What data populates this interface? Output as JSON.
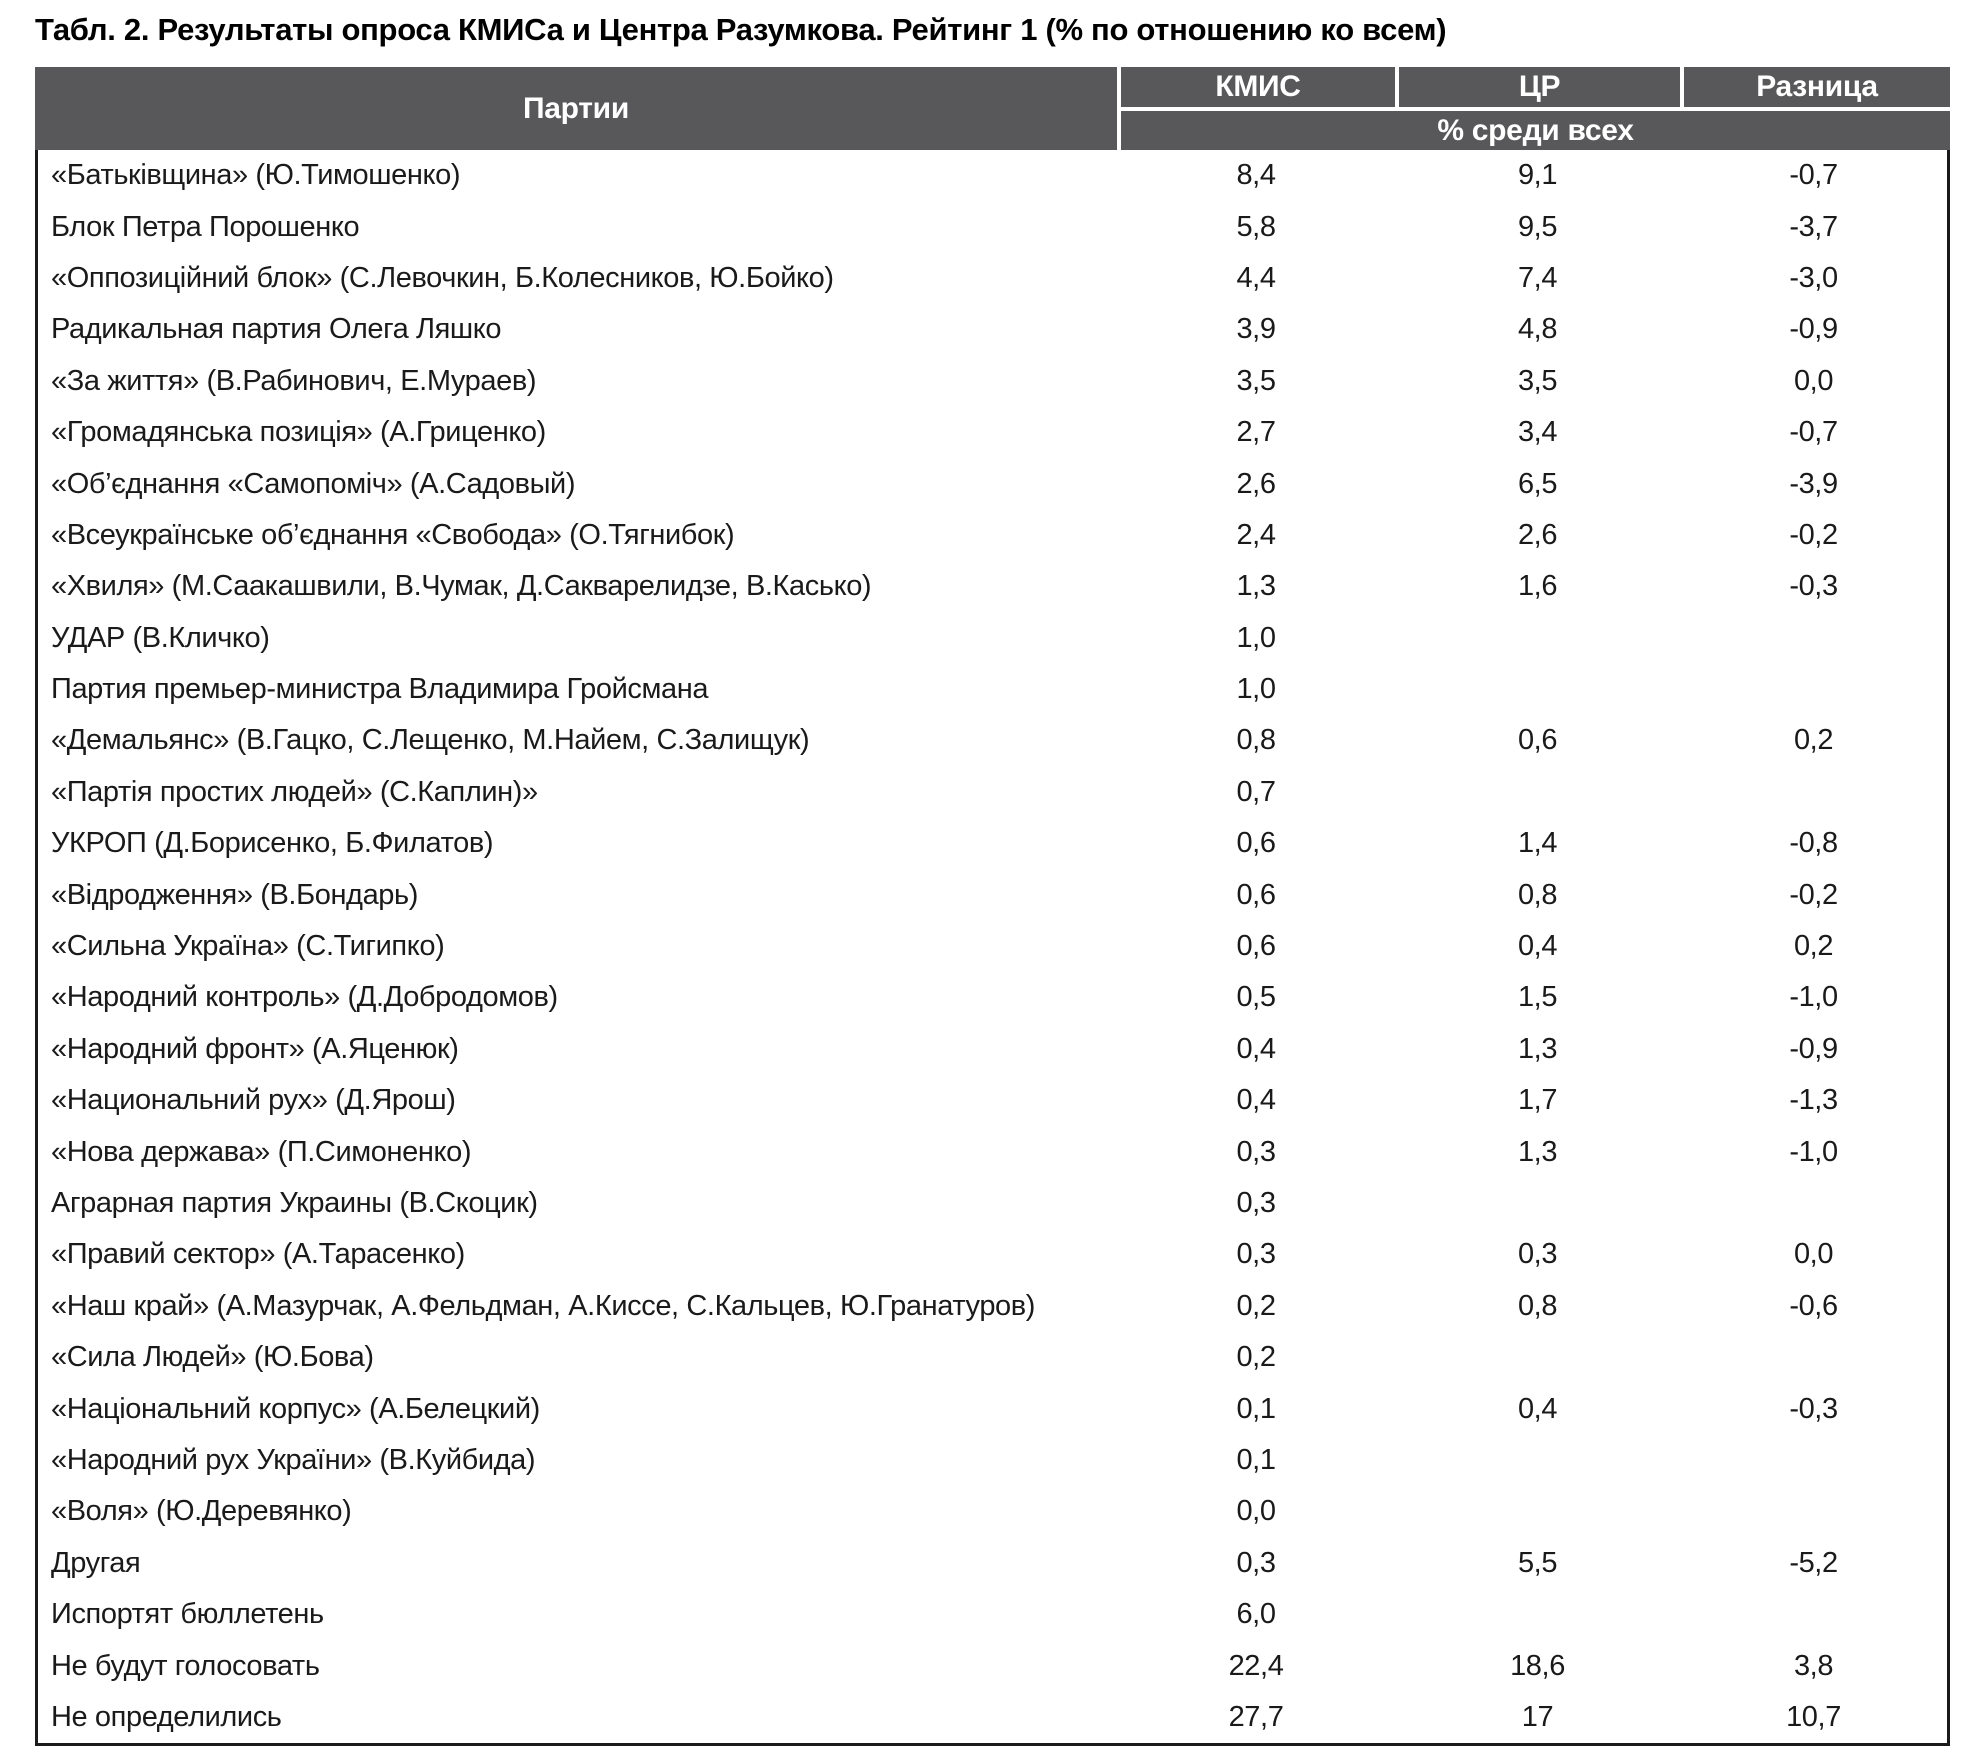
{
  "title": "Табл. 2. Результаты опроса КМИСа и Центра Разумкова. Рейтинг 1 (% по отношению ко всем)",
  "colors": {
    "header_bg": "#58585a",
    "header_text": "#ffffff",
    "body_text": "#1a1a1a",
    "border": "#1b1b1b"
  },
  "table": {
    "columns": [
      "Партии",
      "КМИС",
      "ЦР",
      "Разница"
    ],
    "subheader": "% среди всех",
    "rows": [
      {
        "party": "«Батьківщина» (Ю.Тимошенко)",
        "kmis": "8,4",
        "cr": "9,1",
        "diff": "-0,7"
      },
      {
        "party": "Блок Петра Порошенко",
        "kmis": "5,8",
        "cr": "9,5",
        "diff": "-3,7"
      },
      {
        "party": "«Оппозиційний блок» (С.Левочкин, Б.Колесников, Ю.Бойко)",
        "kmis": "4,4",
        "cr": "7,4",
        "diff": "-3,0"
      },
      {
        "party": "Радикальная партия Олега Ляшко",
        "kmis": "3,9",
        "cr": "4,8",
        "diff": "-0,9"
      },
      {
        "party": "«За життя» (В.Рабинович, Е.Мураев)",
        "kmis": "3,5",
        "cr": "3,5",
        "diff": "0,0"
      },
      {
        "party": "«Громадянська позиція» (А.Гриценко)",
        "kmis": "2,7",
        "cr": "3,4",
        "diff": "-0,7"
      },
      {
        "party": "«Об’єднання «Самопоміч» (А.Садовый)",
        "kmis": "2,6",
        "cr": "6,5",
        "diff": "-3,9"
      },
      {
        "party": "«Всеукраїнське об’єднання «Свобода» (О.Тягнибок)",
        "kmis": "2,4",
        "cr": "2,6",
        "diff": "-0,2"
      },
      {
        "party": "«Хвиля» (М.Саакашвили, В.Чумак, Д.Сакварелидзе, В.Касько)",
        "kmis": "1,3",
        "cr": "1,6",
        "diff": "-0,3"
      },
      {
        "party": "УДАР (В.Кличко)",
        "kmis": "1,0",
        "cr": "",
        "diff": ""
      },
      {
        "party": "Партия премьер-министра Владимира Гройсмана",
        "kmis": "1,0",
        "cr": "",
        "diff": ""
      },
      {
        "party": "«Демальянс» (В.Гацко, С.Лещенко, М.Найем, С.Залищук)",
        "kmis": "0,8",
        "cr": "0,6",
        "diff": "0,2"
      },
      {
        "party": "«Партія простих людей» (С.Каплин)»",
        "kmis": "0,7",
        "cr": "",
        "diff": ""
      },
      {
        "party": "УКРОП (Д.Борисенко, Б.Филатов)",
        "kmis": "0,6",
        "cr": "1,4",
        "diff": "-0,8"
      },
      {
        "party": "«Відродження» (В.Бондарь)",
        "kmis": "0,6",
        "cr": "0,8",
        "diff": "-0,2"
      },
      {
        "party": "«Сильна Україна» (С.Тигипко)",
        "kmis": "0,6",
        "cr": "0,4",
        "diff": "0,2"
      },
      {
        "party": "«Народний контроль» (Д.Добродомов)",
        "kmis": "0,5",
        "cr": "1,5",
        "diff": "-1,0"
      },
      {
        "party": "«Народний фронт» (А.Яценюк)",
        "kmis": "0,4",
        "cr": "1,3",
        "diff": "-0,9"
      },
      {
        "party": "«Национальний рух» (Д.Ярош)",
        "kmis": "0,4",
        "cr": "1,7",
        "diff": "-1,3"
      },
      {
        "party": "«Нова держава» (П.Симоненко)",
        "kmis": "0,3",
        "cr": "1,3",
        "diff": "-1,0"
      },
      {
        "party": "Аграрная партия Украины (В.Скоцик)",
        "kmis": "0,3",
        "cr": "",
        "diff": ""
      },
      {
        "party": "«Правий сектор» (А.Тарасенко)",
        "kmis": "0,3",
        "cr": "0,3",
        "diff": "0,0"
      },
      {
        "party": "«Наш край» (А.Мазурчак, А.Фельдман, А.Киссе, С.Кальцев, Ю.Гранатуров)",
        "kmis": "0,2",
        "cr": "0,8",
        "diff": "-0,6"
      },
      {
        "party": "«Сила Людей» (Ю.Бова)",
        "kmis": "0,2",
        "cr": "",
        "diff": ""
      },
      {
        "party": "«Національний корпус» (А.Белецкий)",
        "kmis": "0,1",
        "cr": "0,4",
        "diff": "-0,3"
      },
      {
        "party": "«Народний рух України» (В.Куйбида)",
        "kmis": "0,1",
        "cr": "",
        "diff": ""
      },
      {
        "party": "«Воля» (Ю.Деревянко)",
        "kmis": "0,0",
        "cr": "",
        "diff": ""
      },
      {
        "party": "Другая",
        "kmis": "0,3",
        "cr": "5,5",
        "diff": "-5,2"
      },
      {
        "party": "Испортят бюллетень",
        "kmis": "6,0",
        "cr": "",
        "diff": ""
      },
      {
        "party": "Не будут голосовать",
        "kmis": "22,4",
        "cr": "18,6",
        "diff": "3,8"
      },
      {
        "party": "Не определились",
        "kmis": "27,7",
        "cr": "17",
        "diff": "10,7"
      }
    ]
  }
}
